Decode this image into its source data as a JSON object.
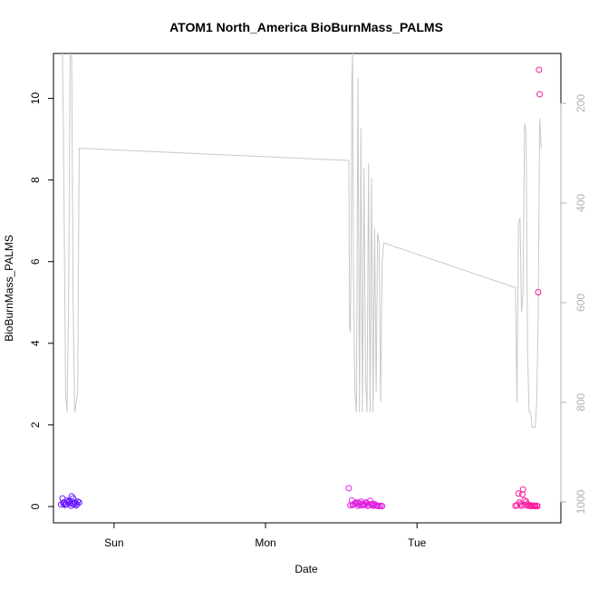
{
  "chart_data": {
    "type": "scatter",
    "title": "ATOM1 North_America BioBurnMass_PALMS",
    "xlabel": "Date",
    "ylabel": "BioBurnMass_PALMS",
    "x_ticks": [
      {
        "value": 1.0,
        "label": "Sun"
      },
      {
        "value": 2.0,
        "label": "Mon"
      },
      {
        "value": 3.0,
        "label": "Tue"
      }
    ],
    "xlim": [
      0.6,
      3.95
    ],
    "ylim": [
      -0.4,
      11.1
    ],
    "y_ticks": [
      0,
      2,
      4,
      6,
      8,
      10
    ],
    "right_axis": {
      "label": "",
      "ticks": [
        200,
        400,
        600,
        800,
        1000
      ],
      "ylim": [
        1042,
        100
      ],
      "reversed": true,
      "color": "#b0b0b0"
    },
    "colors": {
      "line": "#c8c8c8",
      "points_sun": "#6a1bff",
      "points_mon": "#e020e0",
      "points_tue": "#ff1aa0"
    },
    "series": [
      {
        "kind": "altitude-line",
        "axis": "right",
        "x": [
          0.66,
          0.67,
          0.68,
          0.69,
          0.7,
          0.71,
          0.72,
          0.73,
          0.74,
          0.75,
          0.76,
          0.77,
          2.55,
          2.555,
          2.56,
          2.565,
          2.57,
          2.575,
          2.58,
          2.59,
          2.6,
          2.61,
          2.62,
          2.63,
          2.64,
          2.65,
          2.66,
          2.67,
          2.68,
          2.69,
          2.7,
          2.71,
          2.72,
          2.73,
          2.74,
          2.75,
          2.76,
          2.77,
          2.78,
          3.65,
          3.66,
          3.67,
          3.68,
          3.69,
          3.7,
          3.71,
          3.72,
          3.73,
          3.74,
          3.75,
          3.76,
          3.77,
          3.78,
          3.79,
          3.8,
          3.81,
          3.82
        ],
        "y": [
          100,
          400,
          780,
          820,
          600,
          100,
          110,
          600,
          820,
          800,
          780,
          290,
          315,
          650,
          660,
          500,
          150,
          100,
          550,
          780,
          820,
          150,
          820,
          250,
          820,
          330,
          750,
          820,
          320,
          820,
          350,
          820,
          450,
          780,
          460,
          480,
          800,
          520,
          480,
          570,
          800,
          440,
          430,
          620,
          580,
          240,
          260,
          700,
          820,
          820,
          850,
          850,
          850,
          800,
          630,
          230,
          290
        ]
      },
      {
        "name": "",
        "kind": "points",
        "color": "points_sun",
        "x": [
          0.65,
          0.66,
          0.67,
          0.68,
          0.69,
          0.7,
          0.71,
          0.72,
          0.73,
          0.74,
          0.75,
          0.76,
          0.77,
          0.665,
          0.675,
          0.685,
          0.695,
          0.705,
          0.715,
          0.725,
          0.735,
          0.745,
          0.755
        ],
        "y": [
          0.05,
          0.2,
          0.1,
          0.05,
          0.15,
          0.12,
          0.08,
          0.25,
          0.2,
          0.1,
          0.03,
          0.12,
          0.1,
          0.08,
          0.04,
          0.06,
          0.1,
          0.14,
          0.02,
          0.07,
          0.05,
          0.09,
          0.06
        ]
      },
      {
        "name": "",
        "kind": "points",
        "color": "points_mon",
        "x": [
          2.55,
          2.56,
          2.57,
          2.58,
          2.59,
          2.6,
          2.61,
          2.62,
          2.63,
          2.64,
          2.65,
          2.66,
          2.67,
          2.68,
          2.69,
          2.7,
          2.71,
          2.72,
          2.73,
          2.74,
          2.75,
          2.76,
          2.77,
          2.575,
          2.595,
          2.615,
          2.635,
          2.655,
          2.675,
          2.695,
          2.715,
          2.735
        ],
        "y": [
          0.45,
          0.03,
          0.15,
          0.05,
          0.08,
          0.1,
          0.02,
          0.05,
          0.12,
          0.06,
          0.04,
          0.1,
          0.08,
          0.03,
          0.14,
          0.05,
          0.02,
          0.06,
          0.03,
          0.02,
          0.01,
          0.02,
          0.01,
          0.04,
          0.07,
          0.09,
          0.03,
          0.05,
          0.02,
          0.06,
          0.04,
          0.02
        ]
      },
      {
        "name": "",
        "kind": "points",
        "color": "points_tue",
        "x": [
          3.65,
          3.66,
          3.67,
          3.68,
          3.69,
          3.7,
          3.71,
          3.72,
          3.73,
          3.74,
          3.75,
          3.76,
          3.77,
          3.78,
          3.79,
          3.8,
          3.81,
          3.675,
          3.695,
          3.715,
          3.735,
          3.755,
          3.775,
          3.795,
          3.805
        ],
        "y": [
          0.02,
          0.03,
          0.32,
          0.05,
          0.02,
          0.42,
          0.15,
          0.12,
          0.05,
          0.02,
          0.03,
          0.01,
          0.02,
          0.01,
          0.02,
          5.25,
          10.1,
          0.1,
          0.3,
          0.04,
          0.02,
          0.01,
          0.02,
          0.01,
          10.7
        ]
      }
    ]
  }
}
